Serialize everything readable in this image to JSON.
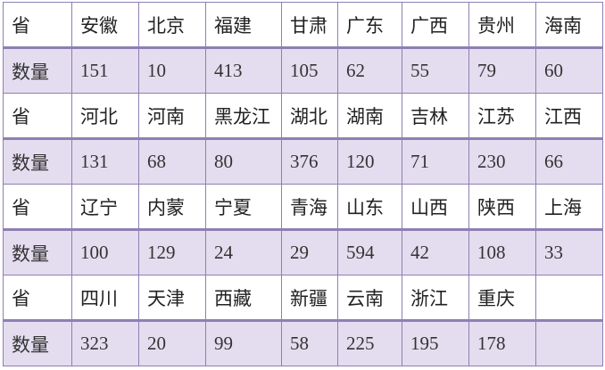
{
  "table": {
    "rows": [
      [
        "省",
        "安徽",
        "北京",
        "福建",
        "甘肃",
        "广东",
        "广西",
        "贵州",
        "海南"
      ],
      [
        "数量",
        151,
        10,
        413,
        105,
        62,
        55,
        79,
        60
      ],
      [
        "省",
        "河北",
        "河南",
        "黑龙江",
        "湖北",
        "湖南",
        "吉林",
        "江苏",
        "江西"
      ],
      [
        "数量",
        131,
        68,
        80,
        376,
        120,
        71,
        230,
        66
      ],
      [
        "省",
        "辽宁",
        "内蒙",
        "宁夏",
        "青海",
        "山东",
        "山西",
        "陕西",
        "上海"
      ],
      [
        "数量",
        100,
        129,
        24,
        29,
        594,
        42,
        108,
        33
      ],
      [
        "省",
        "四川",
        "天津",
        "西藏",
        "新疆",
        "云南",
        "浙江",
        "重庆"
      ],
      [
        "数量",
        323,
        20,
        99,
        58,
        225,
        195,
        178
      ]
    ]
  }
}
